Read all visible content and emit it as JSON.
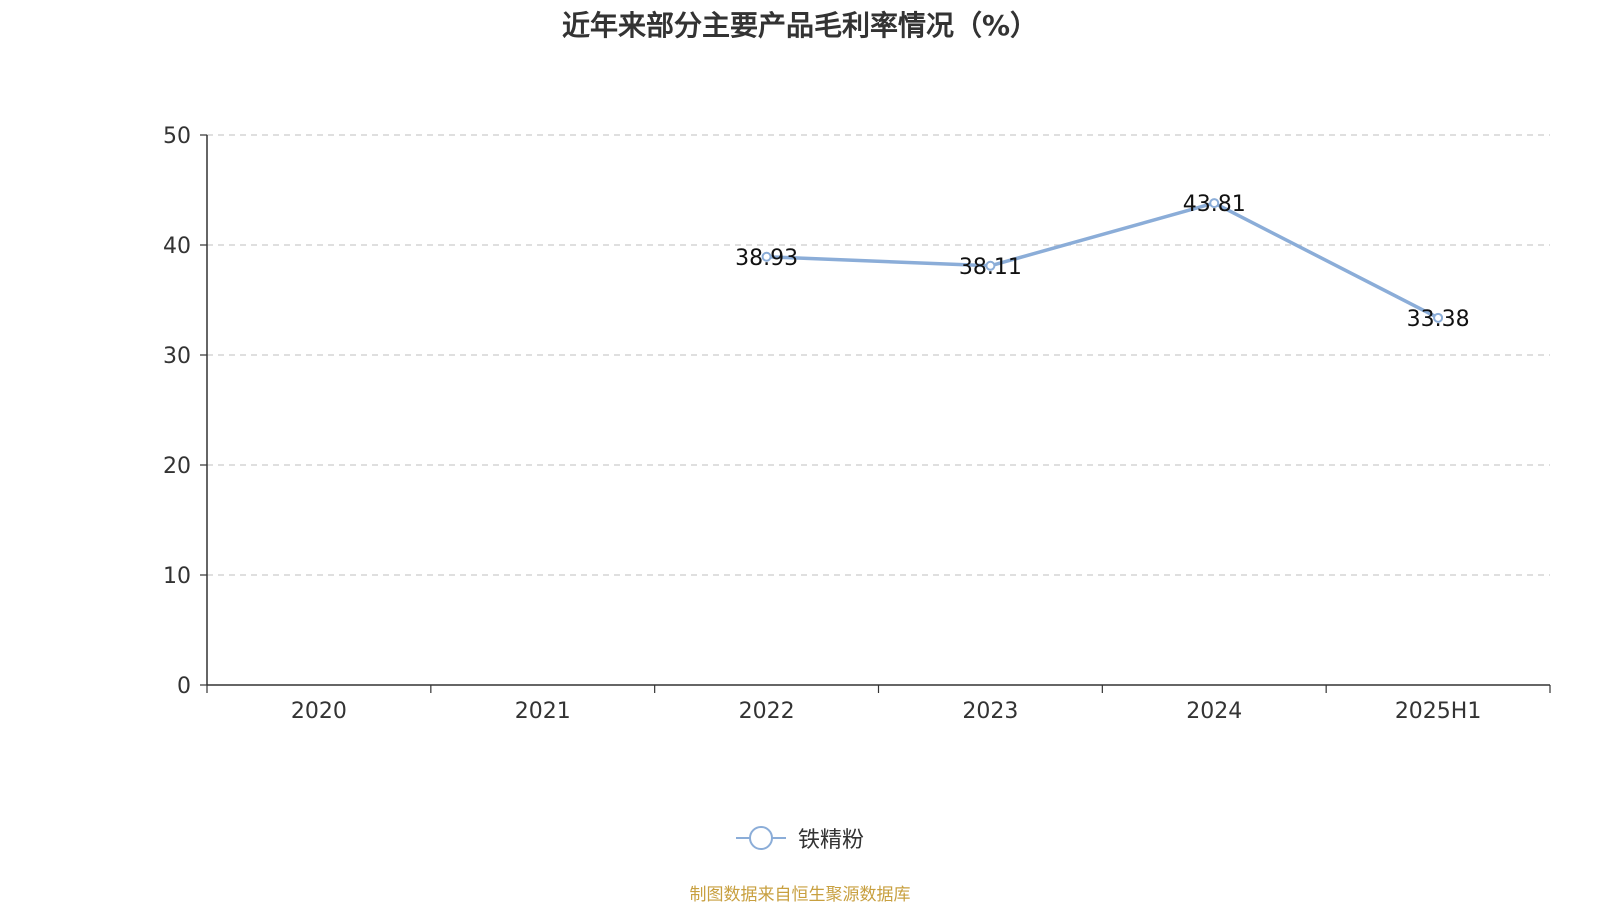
{
  "title": "近年来部分主要产品毛利率情况（%）",
  "source_note": "制图数据来自恒生聚源数据库",
  "colors": {
    "series": "#8badd8",
    "axis": "#333333",
    "grid": "#cccccc",
    "text": "#333333",
    "source": "#c8a040"
  },
  "chart_data": {
    "type": "line",
    "title": "近年来部分主要产品毛利率情况（%）",
    "categories": [
      "2020",
      "2021",
      "2022",
      "2023",
      "2024",
      "2025H1"
    ],
    "series": [
      {
        "name": "铁精粉",
        "values": [
          null,
          null,
          38.93,
          38.11,
          43.81,
          33.38
        ]
      }
    ],
    "y_ticks": [
      0,
      10,
      20,
      30,
      40,
      50
    ],
    "ylim": [
      0,
      50
    ],
    "grid": true,
    "legend_position": "bottom-center"
  }
}
